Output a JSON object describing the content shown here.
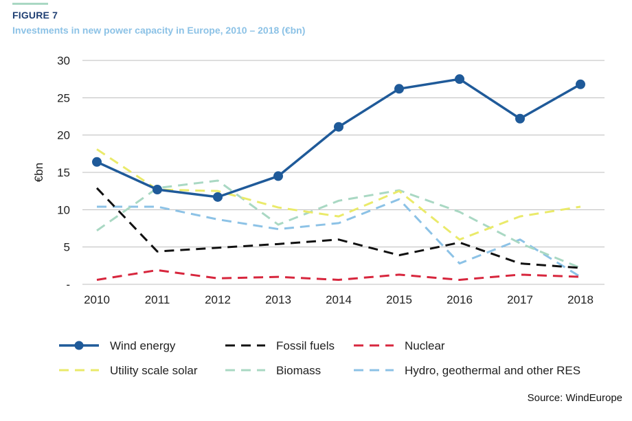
{
  "figure": {
    "label": "FIGURE 7",
    "title": "Investments in new power capacity in Europe, 2010 – 2018 (€bn)",
    "source": "Source: WindEurope"
  },
  "chart_data": {
    "type": "line",
    "title": "Investments in new power capacity in Europe, 2010 – 2018 (€bn)",
    "xlabel": "",
    "ylabel": "€bn",
    "categories": [
      "2010",
      "2011",
      "2012",
      "2013",
      "2014",
      "2015",
      "2016",
      "2017",
      "2018"
    ],
    "ylim": [
      0,
      30
    ],
    "yticks": [
      {
        "value": 0,
        "label": "-"
      },
      {
        "value": 5,
        "label": "5"
      },
      {
        "value": 10,
        "label": "10"
      },
      {
        "value": 15,
        "label": "15"
      },
      {
        "value": 20,
        "label": "20"
      },
      {
        "value": 25,
        "label": "25"
      },
      {
        "value": 30,
        "label": "30"
      }
    ],
    "grid": true,
    "legend_position": "bottom",
    "series": [
      {
        "name": "Wind energy",
        "color": "#1f5a99",
        "style": "solid-markers",
        "values": [
          16.4,
          12.7,
          11.7,
          14.5,
          21.1,
          26.2,
          27.5,
          22.2,
          26.8
        ]
      },
      {
        "name": "Fossil fuels",
        "color": "#111111",
        "style": "dashed",
        "values": [
          12.9,
          4.4,
          4.9,
          5.4,
          6.0,
          3.9,
          5.6,
          2.8,
          2.2
        ]
      },
      {
        "name": "Nuclear",
        "color": "#d7263d",
        "style": "dashed",
        "values": [
          0.6,
          1.9,
          0.8,
          1.0,
          0.6,
          1.3,
          0.6,
          1.3,
          1.0
        ]
      },
      {
        "name": "Utility scale solar",
        "color": "#eaea6a",
        "style": "dashed",
        "values": [
          18.1,
          12.7,
          12.5,
          10.3,
          9.1,
          12.5,
          6.0,
          9.1,
          10.4
        ]
      },
      {
        "name": "Biomass",
        "color": "#a9d8c3",
        "style": "dashed",
        "values": [
          7.2,
          12.9,
          13.9,
          8.0,
          11.2,
          12.6,
          9.7,
          5.5,
          2.2
        ]
      },
      {
        "name": "Hydro, geothermal and other RES",
        "color": "#8cc2e6",
        "style": "dashed",
        "values": [
          10.4,
          10.4,
          8.7,
          7.4,
          8.2,
          11.4,
          2.8,
          6.0,
          1.0
        ]
      }
    ]
  }
}
